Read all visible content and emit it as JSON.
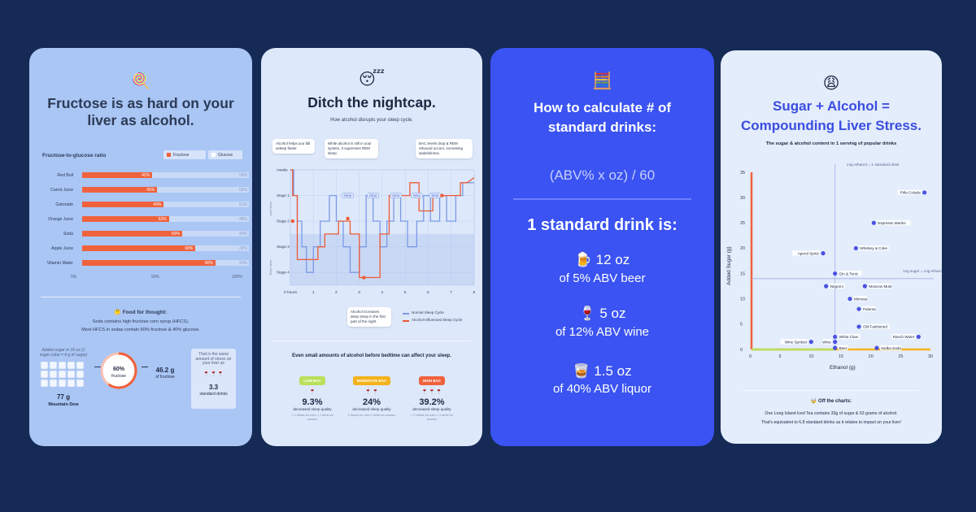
{
  "card1": {
    "emoji": "🍭",
    "title": "Fructose is as hard on your liver as alcohol.",
    "chart_label": "Fructose-to-glucose ratio",
    "legend_fructose": "Fructose",
    "legend_glucose": "Glucose",
    "axis_0": "0%",
    "axis_50": "50%",
    "axis_100": "100%",
    "food_title": "🤔 Food for thought:",
    "food_line1": "Soda contains high fructose corn syrup (HFCS).",
    "food_line2": "Most HFCS in sodas contain 60% fructose & 40% glucose.",
    "added_sugar_note": "Added sugar in 16 oz (1 sugar cube = 4 g of sugar)",
    "sugar_grams": "77 g",
    "sugar_drink": "Mountain Dew",
    "donut_pct": "60%",
    "donut_label": "fructose",
    "fructose_grams": "46.2 g",
    "fructose_label": "of fructose",
    "equiv_note": "That is the same amount of stress on your liver as",
    "equiv_value": "3.3",
    "equiv_label": "standard drinks",
    "glasses": "🍷🍷🍷"
  },
  "chart_data": [
    {
      "type": "bar",
      "title": "Fructose-to-glucose ratio",
      "categories": [
        "Red Bull",
        "Carrot Juice",
        "Gatorade",
        "Orange Juice",
        "Soda",
        "Apple Juice",
        "Vitamin Water"
      ],
      "series": [
        {
          "name": "Fructose",
          "values": [
            42,
            45,
            49,
            52,
            60,
            68,
            80
          ]
        },
        {
          "name": "Glucose",
          "values": [
            58,
            55,
            51,
            48,
            40,
            32,
            20
          ]
        }
      ],
      "value_labels": [
        "42%",
        "45%",
        "49%",
        "52%",
        "60%",
        "68%",
        "80%"
      ],
      "rest_labels": [
        "58%",
        "55%",
        "51%",
        "48%",
        "40%",
        "32%",
        "20%"
      ],
      "ylim": [
        0,
        100
      ]
    },
    {
      "type": "line",
      "title": "How alcohol disrupts your sleep cycle.",
      "x_ticks": [
        "0 hours",
        "1",
        "2",
        "3",
        "4",
        "5",
        "6",
        "7",
        "8"
      ],
      "y_ticks": [
        "Awake",
        "Stage 1",
        "Stage 2",
        "Stage 3",
        "Stage 4"
      ],
      "y_group_light": "Light Sleep",
      "y_group_deep": "Deep Sleep",
      "rem_label": "REM",
      "series": [
        {
          "name": "Normal Sleep Cycle",
          "x": [
            0,
            0.15,
            0.15,
            0.3,
            0.3,
            0.5,
            0.5,
            0.7,
            0.7,
            1.0,
            1.0,
            1.3,
            1.3,
            1.7,
            1.7,
            2.0,
            2.0,
            2.3,
            2.3,
            2.6,
            2.6,
            3.0,
            3.0,
            3.3,
            3.3,
            3.6,
            3.6,
            3.9,
            3.9,
            4.2,
            4.2,
            4.5,
            4.5,
            4.8,
            4.8,
            5.1,
            5.1,
            5.5,
            5.5,
            5.8,
            5.8,
            6.1,
            6.1,
            6.5,
            6.5,
            6.8,
            6.8,
            7.2,
            7.2,
            7.5,
            7.5,
            8
          ],
          "y": [
            0,
            0,
            1,
            1,
            2,
            2,
            3,
            3,
            4,
            4,
            3,
            3,
            2,
            2,
            1,
            1,
            2,
            2,
            3,
            3,
            4,
            4,
            3,
            3,
            1,
            1,
            2,
            2,
            3,
            3,
            2,
            2,
            1,
            1,
            2,
            2,
            3,
            3,
            2,
            2,
            1,
            1,
            2,
            2,
            1,
            1,
            2,
            2,
            1,
            1,
            0.5,
            0.5
          ]
        },
        {
          "name": "Alcohol-Influenced Sleep Cycle",
          "x": [
            0,
            0.1,
            0.1,
            0.3,
            0.3,
            1.2,
            1.2,
            1.5,
            1.5,
            2.1,
            2.1,
            2.6,
            2.6,
            3.0,
            3.0,
            3.9,
            3.9,
            4.3,
            4.3,
            5.2,
            5.2,
            5.6,
            5.6,
            6.2,
            6.2,
            6.8,
            6.8,
            7.4,
            7.4,
            7.7,
            8
          ],
          "y": [
            0,
            0,
            1,
            1,
            3.5,
            3.5,
            3,
            3,
            2.5,
            2.5,
            2,
            2,
            2.5,
            2.5,
            4.2,
            4.2,
            2.5,
            2.5,
            1,
            1,
            0.5,
            0.5,
            1.6,
            1.6,
            1,
            1,
            1,
            1,
            0.5,
            0.5,
            0.3
          ]
        }
      ]
    },
    {
      "type": "scatter",
      "title": "The sugar & alcohol content in 1 serving of popular drinks",
      "xlabel": "Ethanol (g)",
      "ylabel": "Added Sugar (g)",
      "xlim": [
        0,
        30
      ],
      "ylim": [
        0,
        35
      ],
      "x_ticks": [
        0,
        5,
        10,
        15,
        20,
        25,
        30
      ],
      "y_ticks": [
        0,
        5,
        10,
        15,
        20,
        25,
        30,
        35
      ],
      "points": [
        {
          "label": "Piña Colada",
          "x": 29,
          "y": 31
        },
        {
          "label": "Espresso Martini",
          "x": 20.5,
          "y": 25
        },
        {
          "label": "Whiskey & Coke",
          "x": 17.5,
          "y": 20
        },
        {
          "label": "Aperol Spritz",
          "x": 12,
          "y": 19
        },
        {
          "label": "Gin & Tonic",
          "x": 14,
          "y": 15
        },
        {
          "label": "Negroni",
          "x": 12.5,
          "y": 12.5
        },
        {
          "label": "Moscow Mule",
          "x": 19,
          "y": 12.5
        },
        {
          "label": "Mimosa",
          "x": 16.5,
          "y": 10
        },
        {
          "label": "Paloma",
          "x": 18,
          "y": 8
        },
        {
          "label": "Old Fashioned",
          "x": 18,
          "y": 4.5
        },
        {
          "label": "White Claw",
          "x": 14,
          "y": 2.5
        },
        {
          "label": "Ranch Water",
          "x": 28,
          "y": 2.5
        },
        {
          "label": "Wine Spritzer",
          "x": 10,
          "y": 1.5
        },
        {
          "label": "Wine",
          "x": 14,
          "y": 1.5
        },
        {
          "label": "Beer",
          "x": 14,
          "y": 0.3
        },
        {
          "label": "Vodka Soda",
          "x": 21,
          "y": 0.3
        }
      ],
      "ref_x": 14,
      "ref_y": 14,
      "ref_x_label": "14g ethanol = 1 standard drink",
      "ref_y_label": "14g sugar = 14g ethanol"
    }
  ],
  "card2": {
    "emoji": "😴",
    "title": "Ditch the nightcap.",
    "subtitle": "How alcohol disrupts your sleep cycle.",
    "callout1": "Alcohol helps you fall asleep faster.",
    "callout2": "While alcohol is still in your system, it supresses REM sleep.",
    "callout3": "BAC levels drop & REM rebound occurs, increasing wakefulness.",
    "callout4": "Alcohol increases deep sleep in the first part of the night.",
    "legend_normal": "Normal Sleep Cycle",
    "legend_alcohol": "Alcohol-Influenced Sleep Cycle",
    "small_amounts": "Even small amounts of alcohol before bedtime can affect your sleep.",
    "levels": [
      {
        "badge": "LOW BAC",
        "glasses": "🍷",
        "pct": "9.3%",
        "desc": "decreased sleep quality",
        "note": "< 2 drinks for men < 1 drink for women"
      },
      {
        "badge": "MODERATE BAC",
        "glasses": "🍷🍷",
        "pct": "24%",
        "desc": "decreased sleep quality",
        "note": "2 drinks for men 1 drink for women"
      },
      {
        "badge": "HIGH BAC",
        "glasses": "🍷🍷🍷",
        "pct": "39.2%",
        "desc": "decreased sleep quality",
        "note": "> 2 drinks for men > 1 drink for women"
      }
    ]
  },
  "card3": {
    "emoji": "🧮",
    "title_line1": "How to calculate  # of",
    "title_line2": "standard drinks:",
    "formula": "(ABV% x oz) / 60",
    "standard_title": "1 standard drink is:",
    "items": [
      {
        "emoji": "🍺",
        "amount": "12 oz",
        "desc": "of 5% ABV beer"
      },
      {
        "emoji": "🍷",
        "amount": "5 oz",
        "desc": "of 12% ABV wine"
      },
      {
        "emoji": "🥃",
        "amount": "1.5 oz",
        "desc": "of 40% ABV liquor"
      }
    ]
  },
  "card4": {
    "emoji": "😩",
    "title_line1": "Sugar + Alcohol =",
    "title_line2": "Compounding Liver Stress.",
    "subtitle": "The sugar & alcohol content in 1 serving of popular drinks",
    "off_title": "🤯 Off the charts:",
    "off_line1": "One Long Island Iced Tea contains 33g of sugar & 63 grams of alcohol.",
    "off_line2": "That's equivalent to 6.8 standard drinks as it relates to impact on your liver!"
  },
  "colors": {
    "background": "#152a55",
    "fructose": "#f0623c",
    "glucose": "#c9daf7",
    "card3_bg": "#3a53f2",
    "scatter_point": "#4a52e0",
    "normal_line": "#7b9ae6",
    "alcohol_line": "#ee5a34"
  }
}
